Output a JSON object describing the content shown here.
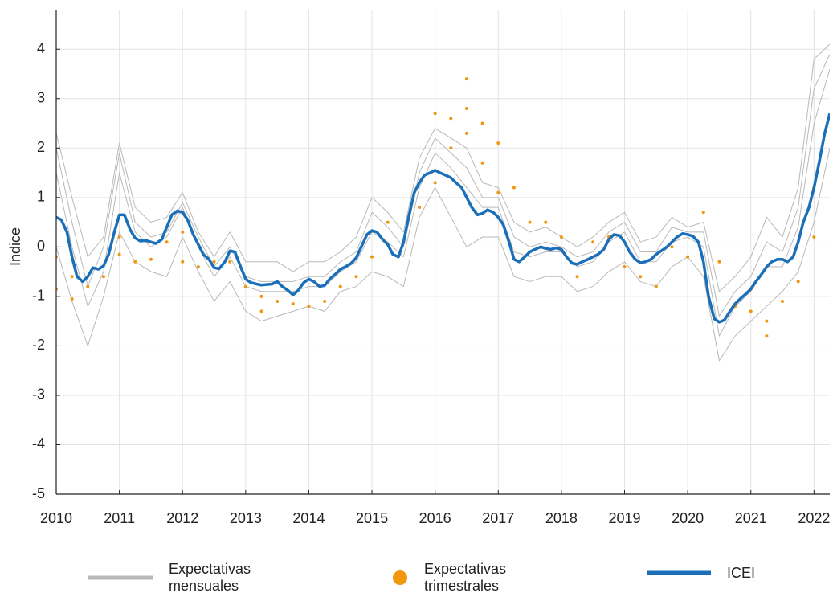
{
  "chart_data": {
    "type": "line",
    "y_label": "Indice",
    "xlim": [
      2010,
      2022.25
    ],
    "ylim": [
      -5,
      4.8
    ],
    "xticks": [
      2010,
      2011,
      2012,
      2013,
      2014,
      2015,
      2016,
      2017,
      2018,
      2019,
      2020,
      2021,
      2022
    ],
    "yticks": [
      -5,
      -4,
      -3,
      -2,
      -1,
      0,
      1,
      2,
      3,
      4
    ],
    "grid": true,
    "legend": "bottom",
    "series": [
      {
        "name": "Expectativas mensuales",
        "type": "line",
        "color": "#b8b8b8",
        "x": [
          2010,
          2010.25,
          2010.5,
          2010.75,
          2011,
          2011.25,
          2011.5,
          2011.75,
          2012,
          2012.25,
          2012.5,
          2012.75,
          2013,
          2013.25,
          2013.5,
          2013.75,
          2014,
          2014.25,
          2014.5,
          2014.75,
          2015,
          2015.25,
          2015.5,
          2015.75,
          2016,
          2016.25,
          2016.5,
          2016.75,
          2017,
          2017.25,
          2017.5,
          2017.75,
          2018,
          2018.25,
          2018.5,
          2018.75,
          2019,
          2019.25,
          2019.5,
          2019.75,
          2020,
          2020.25,
          2020.5,
          2020.75,
          2021,
          2021.25,
          2021.5,
          2021.75,
          2022,
          2022.25
        ],
        "values": [
          [
            2.3,
            1.0,
            -0.2,
            0.2,
            2.1,
            0.8,
            0.5,
            0.6,
            1.1,
            0.3,
            -0.2,
            0.3,
            -0.3,
            -0.3,
            -0.3,
            -0.5,
            -0.3,
            -0.3,
            -0.1,
            0.2,
            1.0,
            0.7,
            0.3,
            1.8,
            2.4,
            2.2,
            2.0,
            1.3,
            1.2,
            0.5,
            0.3,
            0.4,
            0.2,
            0.0,
            0.2,
            0.5,
            0.7,
            0.1,
            0.2,
            0.6,
            0.4,
            0.5,
            -0.9,
            -0.6,
            -0.2,
            0.6,
            0.2,
            1.2,
            3.8,
            4.1
          ],
          [
            0.0,
            -1.1,
            -2.0,
            -1.0,
            0.3,
            -0.3,
            -0.5,
            -0.6,
            0.2,
            -0.5,
            -1.1,
            -0.7,
            -1.3,
            -1.5,
            -1.4,
            -1.3,
            -1.2,
            -1.3,
            -0.9,
            -0.8,
            -0.5,
            -0.6,
            -0.8,
            0.6,
            1.2,
            0.6,
            0.0,
            0.2,
            0.2,
            -0.6,
            -0.7,
            -0.6,
            -0.6,
            -0.9,
            -0.8,
            -0.5,
            -0.3,
            -0.7,
            -0.8,
            -0.4,
            -0.2,
            -0.6,
            -2.3,
            -1.8,
            -1.5,
            -1.2,
            -0.9,
            -0.5,
            0.5,
            2.0
          ],
          [
            1.5,
            0.0,
            -1.2,
            -0.5,
            1.5,
            0.3,
            0.0,
            0.2,
            0.8,
            0.0,
            -0.6,
            -0.2,
            -0.8,
            -0.9,
            -0.9,
            -0.9,
            -0.8,
            -0.8,
            -0.5,
            -0.3,
            0.3,
            0.1,
            -0.2,
            1.2,
            1.9,
            1.6,
            1.2,
            0.8,
            0.8,
            -0.1,
            -0.2,
            -0.1,
            -0.1,
            -0.4,
            -0.3,
            0.1,
            0.3,
            -0.3,
            -0.3,
            0.1,
            0.2,
            0.0,
            -1.8,
            -1.2,
            -0.9,
            -0.4,
            -0.4,
            0.4,
            2.5,
            3.6
          ],
          [
            2.0,
            0.5,
            -0.8,
            0.0,
            1.9,
            0.5,
            0.2,
            0.3,
            0.9,
            0.2,
            -0.4,
            0.0,
            -0.6,
            -0.7,
            -0.7,
            -0.7,
            -0.6,
            -0.6,
            -0.3,
            -0.1,
            0.7,
            0.4,
            0.0,
            1.5,
            2.2,
            1.9,
            1.6,
            1.0,
            1.0,
            0.2,
            0.0,
            0.1,
            0.0,
            -0.2,
            -0.1,
            0.3,
            0.5,
            -0.1,
            -0.1,
            0.4,
            0.3,
            0.3,
            -1.4,
            -0.9,
            -0.6,
            0.1,
            -0.1,
            0.8,
            3.2,
            3.9
          ]
        ]
      },
      {
        "name": "Expectativas trimestrales",
        "type": "scatter",
        "color": "#f0960f",
        "x": [
          2010,
          2010,
          2010.25,
          2010.25,
          2010.5,
          2010.75,
          2011,
          2011,
          2011.25,
          2011.5,
          2011.75,
          2012,
          2012,
          2012.25,
          2012.5,
          2012.75,
          2013,
          2013.25,
          2013.25,
          2013.5,
          2013.75,
          2014,
          2014.25,
          2014.5,
          2014.75,
          2015,
          2015.25,
          2015.5,
          2015.75,
          2016,
          2016,
          2016.25,
          2016.25,
          2016.5,
          2016.5,
          2016.5,
          2016.75,
          2016.75,
          2017,
          2017,
          2017.25,
          2017.5,
          2017.75,
          2018,
          2018.25,
          2018.5,
          2018.75,
          2019,
          2019.25,
          2019.5,
          2019.75,
          2020,
          2020.25,
          2020.5,
          2020.75,
          2021,
          2021.25,
          2021.25,
          2021.5,
          2021.75,
          2022,
          2022
        ],
        "values": [
          -0.2,
          -0.85,
          -0.6,
          -1.05,
          -0.8,
          -0.6,
          0.2,
          -0.15,
          -0.3,
          -0.25,
          0.1,
          0.3,
          -0.3,
          -0.4,
          -0.3,
          -0.3,
          -0.8,
          -1.0,
          -1.3,
          -1.1,
          -1.15,
          -1.2,
          -1.1,
          -0.8,
          -0.6,
          -0.2,
          0.5,
          0.1,
          0.8,
          2.7,
          1.3,
          2.6,
          2.0,
          3.4,
          2.8,
          2.3,
          2.5,
          1.7,
          2.1,
          1.1,
          1.2,
          0.5,
          0.5,
          0.2,
          -0.6,
          0.1,
          0.2,
          -0.4,
          -0.6,
          -0.8,
          0.0,
          -0.2,
          0.7,
          -0.3,
          -1.2,
          -1.3,
          -1.5,
          -1.8,
          -1.1,
          -0.7,
          1.2,
          0.2
        ]
      },
      {
        "name": "ICEI",
        "type": "line",
        "color": "#1a6fb8",
        "x": [
          2010,
          2010.08,
          2010.17,
          2010.25,
          2010.33,
          2010.42,
          2010.5,
          2010.58,
          2010.67,
          2010.75,
          2010.83,
          2010.92,
          2011,
          2011.08,
          2011.17,
          2011.25,
          2011.33,
          2011.42,
          2011.5,
          2011.58,
          2011.67,
          2011.75,
          2011.83,
          2011.92,
          2012,
          2012.08,
          2012.17,
          2012.25,
          2012.33,
          2012.42,
          2012.5,
          2012.58,
          2012.67,
          2012.75,
          2012.83,
          2012.92,
          2013,
          2013.08,
          2013.17,
          2013.25,
          2013.33,
          2013.42,
          2013.5,
          2013.58,
          2013.67,
          2013.75,
          2013.83,
          2013.92,
          2014,
          2014.08,
          2014.17,
          2014.25,
          2014.33,
          2014.42,
          2014.5,
          2014.58,
          2014.67,
          2014.75,
          2014.83,
          2014.92,
          2015,
          2015.08,
          2015.17,
          2015.25,
          2015.33,
          2015.42,
          2015.5,
          2015.58,
          2015.67,
          2015.75,
          2015.83,
          2015.92,
          2016,
          2016.08,
          2016.17,
          2016.25,
          2016.33,
          2016.42,
          2016.5,
          2016.58,
          2016.67,
          2016.75,
          2016.83,
          2016.92,
          2017,
          2017.08,
          2017.17,
          2017.25,
          2017.33,
          2017.42,
          2017.5,
          2017.58,
          2017.67,
          2017.75,
          2017.83,
          2017.92,
          2018,
          2018.08,
          2018.17,
          2018.25,
          2018.33,
          2018.42,
          2018.5,
          2018.58,
          2018.67,
          2018.75,
          2018.83,
          2018.92,
          2019,
          2019.08,
          2019.17,
          2019.25,
          2019.33,
          2019.42,
          2019.5,
          2019.58,
          2019.67,
          2019.75,
          2019.83,
          2019.92,
          2020,
          2020.08,
          2020.17,
          2020.25,
          2020.33,
          2020.42,
          2020.5,
          2020.58,
          2020.67,
          2020.75,
          2020.83,
          2020.92,
          2021,
          2021.08,
          2021.17,
          2021.25,
          2021.33,
          2021.42,
          2021.5,
          2021.58,
          2021.67,
          2021.75,
          2021.83,
          2021.92,
          2022,
          2022.08,
          2022.17,
          2022.25
        ],
        "values": [
          0.6,
          0.55,
          0.3,
          -0.2,
          -0.6,
          -0.7,
          -0.6,
          -0.42,
          -0.45,
          -0.38,
          -0.15,
          0.3,
          0.65,
          0.65,
          0.35,
          0.18,
          0.12,
          0.13,
          0.1,
          0.07,
          0.15,
          0.4,
          0.65,
          0.73,
          0.7,
          0.55,
          0.25,
          0.05,
          -0.15,
          -0.25,
          -0.42,
          -0.44,
          -0.3,
          -0.08,
          -0.1,
          -0.4,
          -0.65,
          -0.72,
          -0.75,
          -0.77,
          -0.76,
          -0.75,
          -0.7,
          -0.8,
          -0.88,
          -0.97,
          -0.88,
          -0.72,
          -0.65,
          -0.7,
          -0.8,
          -0.78,
          -0.65,
          -0.55,
          -0.45,
          -0.4,
          -0.33,
          -0.22,
          0,
          0.25,
          0.33,
          0.3,
          0.15,
          0.05,
          -0.15,
          -0.2,
          0.1,
          0.6,
          1.1,
          1.3,
          1.45,
          1.5,
          1.55,
          1.5,
          1.45,
          1.4,
          1.3,
          1.2,
          1.0,
          0.8,
          0.65,
          0.68,
          0.75,
          0.7,
          0.6,
          0.45,
          0.1,
          -0.25,
          -0.3,
          -0.2,
          -0.1,
          -0.05,
          0,
          -0.03,
          -0.05,
          -0.02,
          -0.05,
          -0.2,
          -0.33,
          -0.35,
          -0.3,
          -0.25,
          -0.2,
          -0.15,
          -0.05,
          0.15,
          0.25,
          0.23,
          0.1,
          -0.1,
          -0.25,
          -0.32,
          -0.3,
          -0.25,
          -0.15,
          -0.08,
          0,
          0.1,
          0.2,
          0.27,
          0.25,
          0.22,
          0.1,
          -0.3,
          -1.0,
          -1.45,
          -1.52,
          -1.48,
          -1.3,
          -1.15,
          -1.05,
          -0.95,
          -0.85,
          -0.7,
          -0.55,
          -0.4,
          -0.3,
          -0.25,
          -0.25,
          -0.3,
          -0.2,
          0.1,
          0.5,
          0.8,
          1.2,
          1.7,
          2.3,
          2.7
        ]
      }
    ]
  }
}
